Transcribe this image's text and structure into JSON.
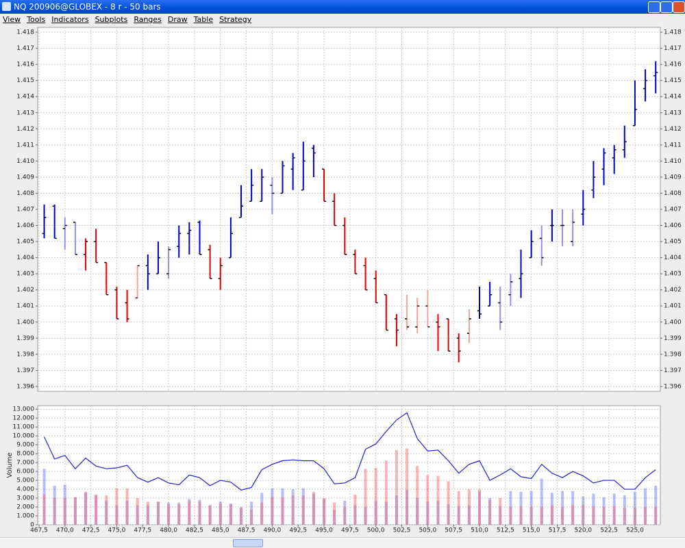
{
  "window": {
    "title": "NQ 200906@GLOBEX - 8 r - 50 bars",
    "menu": [
      "View",
      "Tools",
      "Indicators",
      "Subplots",
      "Ranges",
      "Draw",
      "Table",
      "Strategy"
    ]
  },
  "chart_data": [
    {
      "type": "ohlc",
      "x": [
        468,
        469,
        470,
        471,
        472,
        473,
        474,
        475,
        476,
        477,
        478,
        479,
        480,
        481,
        482,
        483,
        484,
        485,
        486,
        487,
        488,
        489,
        490,
        491,
        492,
        493,
        494,
        495,
        496,
        497,
        498,
        499,
        500,
        501,
        502,
        503,
        504,
        505,
        506,
        507,
        508,
        509,
        510,
        511,
        512,
        513,
        514,
        515,
        516,
        517,
        518,
        519,
        520,
        521,
        522,
        523,
        524,
        525,
        526,
        527
      ],
      "open": [
        1.4055,
        1.4072,
        1.4058,
        1.4062,
        1.4042,
        1.405,
        1.4037,
        1.402,
        1.4012,
        1.4015,
        1.4035,
        1.403,
        1.403,
        1.4047,
        1.4055,
        1.4062,
        1.4045,
        1.4027,
        1.404,
        1.4065,
        1.4075,
        1.4075,
        1.4085,
        1.408,
        1.4095,
        1.4082,
        1.4108,
        1.4095,
        1.4075,
        1.406,
        1.4042,
        1.4035,
        1.4027,
        1.4017,
        1.4002,
        1.4002,
        1.3997,
        1.401,
        1.4,
        1.4002,
        1.399,
        1.3993,
        1.4007,
        1.401,
        1.4012,
        1.4017,
        1.4027,
        1.404,
        1.4052,
        1.406,
        1.406,
        1.405,
        1.4067,
        1.4082,
        1.4095,
        1.4102,
        1.4107,
        1.4122,
        1.4145,
        1.4153
      ],
      "high": [
        1.4073,
        1.4073,
        1.4065,
        1.4062,
        1.4052,
        1.4058,
        1.4037,
        1.4022,
        1.402,
        1.4035,
        1.4042,
        1.405,
        1.4047,
        1.406,
        1.4062,
        1.4063,
        1.4048,
        1.404,
        1.4065,
        1.4085,
        1.4095,
        1.4095,
        1.409,
        1.41,
        1.4105,
        1.4112,
        1.411,
        1.4095,
        1.408,
        1.4065,
        1.4045,
        1.404,
        1.4032,
        1.4017,
        1.4005,
        1.4017,
        1.4015,
        1.402,
        1.4005,
        1.4002,
        1.3993,
        1.4008,
        1.4022,
        1.4025,
        1.4022,
        1.403,
        1.4045,
        1.4057,
        1.406,
        1.407,
        1.407,
        1.407,
        1.4082,
        1.41,
        1.4108,
        1.411,
        1.4122,
        1.415,
        1.4157,
        1.4162
      ],
      "low": [
        1.4052,
        1.4052,
        1.4045,
        1.4042,
        1.4032,
        1.4037,
        1.4017,
        1.4002,
        1.4,
        1.4015,
        1.402,
        1.403,
        1.4027,
        1.404,
        1.4042,
        1.4042,
        1.4027,
        1.402,
        1.404,
        1.4065,
        1.4075,
        1.4075,
        1.4067,
        1.408,
        1.4082,
        1.4082,
        1.409,
        1.4075,
        1.406,
        1.4042,
        1.403,
        1.402,
        1.4012,
        1.3995,
        1.3985,
        1.3995,
        1.3993,
        1.3997,
        1.3982,
        1.3982,
        1.3975,
        1.3987,
        1.4002,
        1.401,
        1.3995,
        1.401,
        1.4015,
        1.404,
        1.4035,
        1.405,
        1.4047,
        1.4047,
        1.406,
        1.4077,
        1.4085,
        1.4092,
        1.4102,
        1.4122,
        1.4137,
        1.4142
      ],
      "close": [
        1.4065,
        1.4052,
        1.406,
        1.4042,
        1.405,
        1.4037,
        1.4017,
        1.4002,
        1.4002,
        1.4035,
        1.403,
        1.404,
        1.4045,
        1.4055,
        1.4057,
        1.4042,
        1.4027,
        1.4035,
        1.4055,
        1.4072,
        1.4085,
        1.409,
        1.408,
        1.4097,
        1.4102,
        1.41,
        1.4105,
        1.4075,
        1.406,
        1.4042,
        1.403,
        1.402,
        1.4012,
        1.3995,
        1.3995,
        1.3997,
        1.401,
        1.3997,
        1.3997,
        1.3982,
        1.3982,
        1.4002,
        1.4005,
        1.4017,
        1.4,
        1.4025,
        1.403,
        1.405,
        1.404,
        1.406,
        1.406,
        1.4062,
        1.407,
        1.409,
        1.4105,
        1.4107,
        1.4112,
        1.4132,
        1.415,
        1.4155
      ],
      "colors": [
        "#0000cc",
        "#0000cc",
        "#9090f0",
        "#9090f0",
        "#e00000",
        "#e00000",
        "#e00000",
        "#e00000",
        "#e00000",
        "#f4a0a0",
        "#0000cc",
        "#0000cc",
        "#9090f0",
        "#0000cc",
        "#0000cc",
        "#0000cc",
        "#e00000",
        "#e00000",
        "#0000cc",
        "#0000cc",
        "#0000cc",
        "#0000cc",
        "#9090f0",
        "#0000cc",
        "#0000cc",
        "#0000cc",
        "#0000cc",
        "#e00000",
        "#e00000",
        "#e00000",
        "#e00000",
        "#e00000",
        "#e00000",
        "#e00000",
        "#e00000",
        "#f4a0a0",
        "#f4a0a0",
        "#f4a0a0",
        "#e00000",
        "#e00000",
        "#e00000",
        "#f4a0a0",
        "#0000cc",
        "#0000cc",
        "#9090f0",
        "#9090f0",
        "#0000cc",
        "#0000cc",
        "#9090f0",
        "#0000cc",
        "#9090f0",
        "#9090f0",
        "#0000cc",
        "#0000cc",
        "#0000cc",
        "#0000cc",
        "#0000cc",
        "#0000cc",
        "#0000cc",
        "#0000cc"
      ],
      "xlim": [
        467.37,
        527.45
      ],
      "ylim": [
        1.3957,
        1.4183
      ],
      "yticks": [
        1.396,
        1.397,
        1.398,
        1.399,
        {
          "value": 1.4,
          "label": "1.400"
        },
        1.401,
        1.402,
        1.403,
        1.404,
        1.405,
        1.406,
        1.407,
        1.408,
        1.409,
        {
          "value": 1.41,
          "label": "1.410"
        },
        1.411,
        1.412,
        1.413,
        1.414,
        1.415,
        1.416,
        1.417,
        1.418
      ],
      "grid": true
    },
    {
      "type": "bar",
      "ylabel": "Volume",
      "x": [
        468,
        469,
        470,
        471,
        472,
        473,
        474,
        475,
        476,
        477,
        478,
        479,
        480,
        481,
        482,
        483,
        484,
        485,
        486,
        487,
        488,
        489,
        490,
        491,
        492,
        493,
        494,
        495,
        496,
        497,
        498,
        499,
        500,
        501,
        502,
        503,
        504,
        505,
        506,
        507,
        508,
        509,
        510,
        511,
        512,
        513,
        514,
        515,
        516,
        517,
        518,
        519,
        520,
        521,
        522,
        523,
        524,
        525,
        526,
        527
      ],
      "series": [
        {
          "color": "#6f7cf5",
          "values": [
            6300,
            4400,
            4500,
            3100,
            3600,
            3300,
            2700,
            2200,
            2700,
            2200,
            2200,
            2600,
            2500,
            2500,
            2900,
            2800,
            2200,
            2600,
            2400,
            1900,
            2600,
            3600,
            4100,
            4100,
            4000,
            4100,
            3500,
            2900,
            1700,
            2700,
            2200,
            2000,
            2700,
            2600,
            3300,
            3900,
            3000,
            2600,
            2700,
            2300,
            2100,
            2200,
            3700,
            3000,
            2100,
            3800,
            3700,
            3800,
            5200,
            3600,
            3800,
            3800,
            3200,
            3500,
            3100,
            3500,
            3300,
            3700,
            4100,
            4400
          ]
        },
        {
          "color": "#f36c6c",
          "values": [
            3400,
            3000,
            3000,
            3100,
            3700,
            3400,
            3300,
            4100,
            4100,
            3000,
            2600,
            2600,
            2300,
            2300,
            2700,
            2600,
            2200,
            2400,
            2300,
            2000,
            1700,
            2500,
            3100,
            3100,
            3300,
            3300,
            3700,
            3000,
            2500,
            2000,
            3400,
            6300,
            6400,
            7200,
            8400,
            8600,
            6600,
            5600,
            5500,
            4900,
            3800,
            4000,
            4000,
            2800,
            3000,
            2000,
            2100,
            2000,
            2000,
            2200,
            2000,
            2200,
            2200,
            2100,
            2000,
            2100,
            1900,
            1900,
            2000,
            2000
          ]
        },
        {
          "type": "line",
          "color": "#2020d0",
          "values": [
            9900,
            7400,
            7800,
            6300,
            7500,
            6600,
            6300,
            6400,
            6700,
            5300,
            4800,
            5300,
            4700,
            4500,
            5600,
            5300,
            4400,
            5000,
            4800,
            3900,
            4200,
            6200,
            6800,
            7200,
            7300,
            7200,
            7200,
            6300,
            4600,
            4700,
            5300,
            8500,
            9100,
            10500,
            11800,
            12600,
            9700,
            8300,
            8400,
            7200,
            5800,
            6800,
            7200,
            5000,
            5600,
            6300,
            5400,
            5200,
            6800,
            5800,
            5300,
            6000,
            5500,
            4700,
            5000,
            5000,
            4000,
            4000,
            5300,
            6200
          ]
        }
      ],
      "xlim": [
        467.37,
        527.45
      ],
      "ylim": [
        0,
        13400
      ],
      "yticks": [
        0,
        {
          "value": 1000,
          "label": "1.000"
        },
        {
          "value": 2000,
          "label": "2.000"
        },
        {
          "value": 3000,
          "label": "3.000"
        },
        {
          "value": 4000,
          "label": "4.000"
        },
        {
          "value": 5000,
          "label": "5.000"
        },
        {
          "value": 6000,
          "label": "6.000"
        },
        {
          "value": 7000,
          "label": "7.000"
        },
        {
          "value": 8000,
          "label": "8.000"
        },
        {
          "value": 9000,
          "label": "9.000"
        },
        {
          "value": 10000,
          "label": "10.000"
        },
        {
          "value": 11000,
          "label": "11.000"
        },
        {
          "value": 12000,
          "label": "12.000"
        },
        {
          "value": 13000,
          "label": "13.000"
        }
      ],
      "xticks": [
        {
          "value": 467.5,
          "label": "467,5"
        },
        {
          "value": 470,
          "label": "470,0"
        },
        {
          "value": 472.5,
          "label": "472,5"
        },
        {
          "value": 475,
          "label": "475,0"
        },
        {
          "value": 477.5,
          "label": "477,5"
        },
        {
          "value": 480,
          "label": "480,0"
        },
        {
          "value": 482.5,
          "label": "482,5"
        },
        {
          "value": 485,
          "label": "485,0"
        },
        {
          "value": 487.5,
          "label": "487,5"
        },
        {
          "value": 490,
          "label": "490,0"
        },
        {
          "value": 492.5,
          "label": "492,5"
        },
        {
          "value": 495,
          "label": "495,0"
        },
        {
          "value": 497.5,
          "label": "497,5"
        },
        {
          "value": 500,
          "label": "500,0"
        },
        {
          "value": 502.5,
          "label": "502,5"
        },
        {
          "value": 505,
          "label": "505,0"
        },
        {
          "value": 507.5,
          "label": "507,5"
        },
        {
          "value": 510,
          "label": "510,0"
        },
        {
          "value": 512.5,
          "label": "512,5"
        },
        {
          "value": 515,
          "label": "515,0"
        },
        {
          "value": 517.5,
          "label": "517,5"
        },
        {
          "value": 520,
          "label": "520,0"
        },
        {
          "value": 522.5,
          "label": "522,5"
        },
        {
          "value": 525,
          "label": "525,0"
        }
      ],
      "grid": true
    }
  ]
}
